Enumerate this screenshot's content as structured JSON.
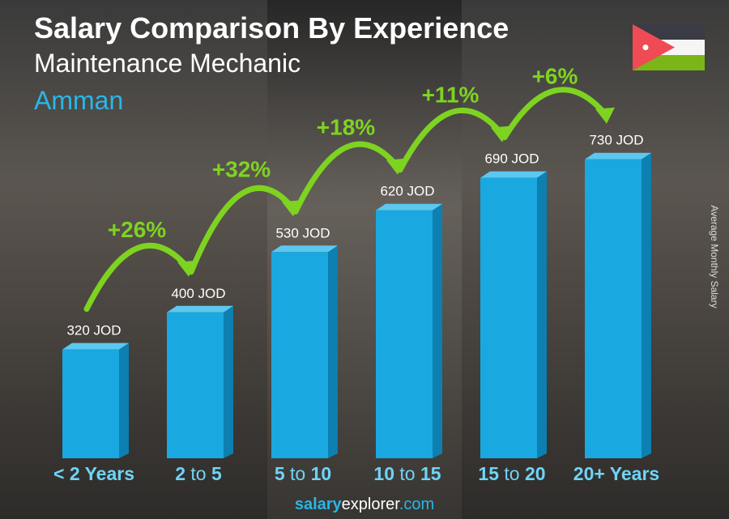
{
  "title": "Salary Comparison By Experience",
  "subtitle": "Maintenance Mechanic",
  "location": "Amman",
  "y_axis_label": "Average Monthly Salary",
  "footer": {
    "brand1": "salary",
    "brand2": "explorer",
    ".com": ".com"
  },
  "flag": "jordan-flag",
  "colors": {
    "bar": "#1aa8e0",
    "bar_side": "#0d7fb0",
    "category": "#6fd4f7",
    "arrow": "#7ed321"
  },
  "chart_data": {
    "type": "bar",
    "categories": [
      "< 2 Years",
      "2 to 5",
      "5 to 10",
      "10 to 15",
      "15 to 20",
      "20+ Years"
    ],
    "values": [
      320,
      400,
      530,
      620,
      690,
      730
    ],
    "value_labels": [
      "320 JOD",
      "400 JOD",
      "530 JOD",
      "620 JOD",
      "690 JOD",
      "730 JOD"
    ],
    "changes": [
      "+26%",
      "+32%",
      "+18%",
      "+11%",
      "+6%"
    ],
    "unit": "JOD"
  }
}
